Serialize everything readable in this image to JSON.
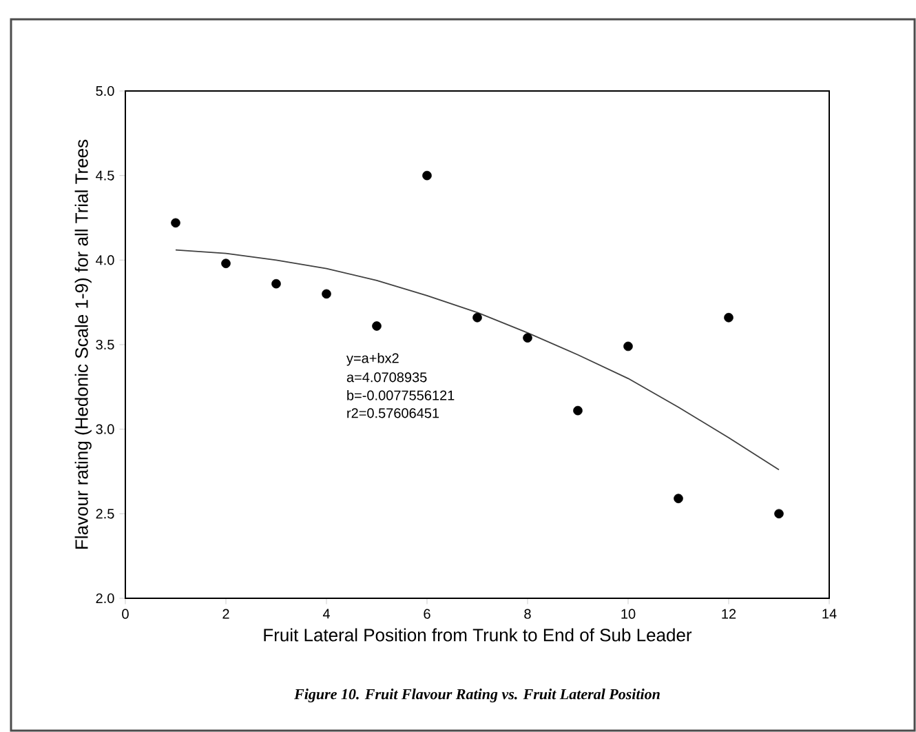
{
  "chart_data": {
    "type": "scatter",
    "xlabel": "Fruit Lateral Position from Trunk to End of Sub Leader",
    "ylabel": "Flavour rating (Hedonic Scale 1-9) for all Trial Trees",
    "x": [
      1,
      2,
      3,
      4,
      5,
      6,
      7,
      8,
      9,
      10,
      11,
      12,
      13
    ],
    "series": [
      {
        "color": "#000000",
        "marker": "circle",
        "values": [
          4.22,
          3.98,
          3.86,
          3.8,
          3.61,
          4.5,
          3.66,
          3.54,
          3.11,
          3.49,
          2.59,
          3.66,
          2.5
        ]
      },
      {
        "type": "line",
        "color": "#404040",
        "marker": "none",
        "x": [
          1,
          2,
          3,
          4,
          5,
          6,
          7,
          8,
          9,
          10,
          11,
          12,
          13
        ],
        "values": [
          4.06,
          4.04,
          4.0,
          3.95,
          3.88,
          3.79,
          3.69,
          3.57,
          3.44,
          3.3,
          3.13,
          2.95,
          2.76
        ]
      }
    ],
    "xlim": [
      0,
      14
    ],
    "xticks": [
      0,
      2,
      4,
      6,
      8,
      10,
      12,
      14
    ],
    "ylim": [
      2.0,
      5.0
    ],
    "yticks": [
      {
        "value": 2.0,
        "label": "2.0"
      },
      {
        "value": 2.5,
        "label": "2.5"
      },
      {
        "value": 3.0,
        "label": "3.0"
      },
      {
        "value": 3.5,
        "label": "3.5"
      },
      {
        "value": 4.0,
        "label": "4.0"
      },
      {
        "value": 4.5,
        "label": "4.5"
      },
      {
        "value": 5.0,
        "label": "5.0"
      }
    ],
    "annotations": [
      "y=a+bx2",
      "a=4.0708935",
      "b=-0.0077556121",
      "r2=0.57606451",
      "Figure 10.  Fruit Flavour Rating vs. Fruit Lateral Position"
    ]
  }
}
